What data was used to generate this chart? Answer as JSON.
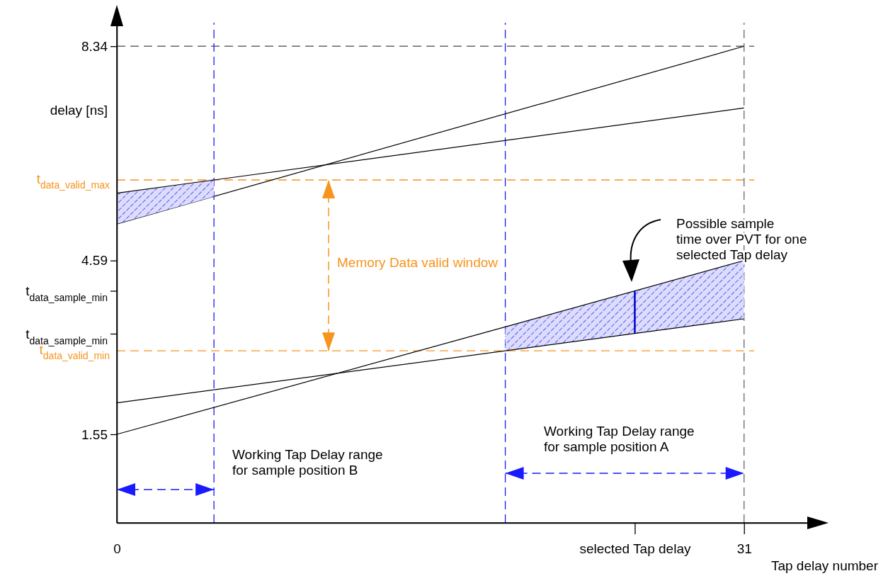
{
  "chart_data": {
    "type": "line",
    "ylabel": "delay [ns]",
    "xlabel": "Tap delay number",
    "xlim": [
      0,
      35
    ],
    "ylim": [
      0,
      9
    ],
    "xticks": [
      0,
      {
        "value": 25.6,
        "label": "selected Tap delay"
      },
      31
    ],
    "yticks": [
      1.55,
      {
        "value": 3.31,
        "label": "t$_{data_sample_min}$"
      },
      {
        "value": 4.06,
        "label": "t$_{data_sample_min}$"
      },
      4.59,
      8.34
    ],
    "marker": "none",
    "line_style": "solid",
    "series": [
      {
        "type": "line",
        "color": "#000000",
        "x": [
          0,
          31
        ],
        "values": [
          5.23,
          8.34
        ]
      },
      {
        "type": "line",
        "color": "#000000",
        "x": [
          0,
          4.8,
          31
        ],
        "values": [
          5.77,
          6.0,
          7.26
        ],
        "lower": [
          5.23,
          5.71,
          null
        ],
        "upper": [
          5.77,
          6.0,
          null
        ]
      },
      {
        "type": "line",
        "color": "#000000",
        "x": [
          0,
          19.2,
          31
        ],
        "values": [
          1.55,
          3.43,
          4.59
        ],
        "lower": [
          null,
          3.01,
          3.57
        ],
        "upper": [
          null,
          3.43,
          4.59
        ]
      },
      {
        "type": "line",
        "color": "#000000",
        "x": [
          0,
          31
        ],
        "values": [
          2.1,
          3.57
        ]
      },
      {
        "type": "line",
        "color": "#0000cc",
        "x": [
          25.6,
          25.6
        ],
        "values": [
          3.31,
          4.06
        ]
      }
    ],
    "ref_lines": [
      {
        "axis": "y",
        "value": 6.0,
        "label": "t$_{data_valid_max}$",
        "color": "#f7941d",
        "line_style": "dashed"
      },
      {
        "axis": "y",
        "value": 3.01,
        "label": "t$_{data_valid_min}$",
        "color": "#f7941d",
        "line_style": "dashed"
      },
      {
        "axis": "y",
        "value": 8.34,
        "color": "#666666",
        "line_style": "dashed"
      },
      {
        "axis": "x",
        "value": 31,
        "color": "#666666",
        "line_style": "dashed"
      },
      {
        "axis": "x",
        "value": 4.8,
        "color": "#1a1aff",
        "line_style": "dashed"
      },
      {
        "axis": "x",
        "value": 19.2,
        "color": "#1a1aff",
        "line_style": "dashed"
      }
    ],
    "annotations": [
      "Possible sample\ntime over PVT for one\nselected Tap delay",
      "Memory Data valid window",
      "Working Tap Delay range\nfor sample position B",
      "Working Tap Delay range\nfor sample position A"
    ]
  }
}
